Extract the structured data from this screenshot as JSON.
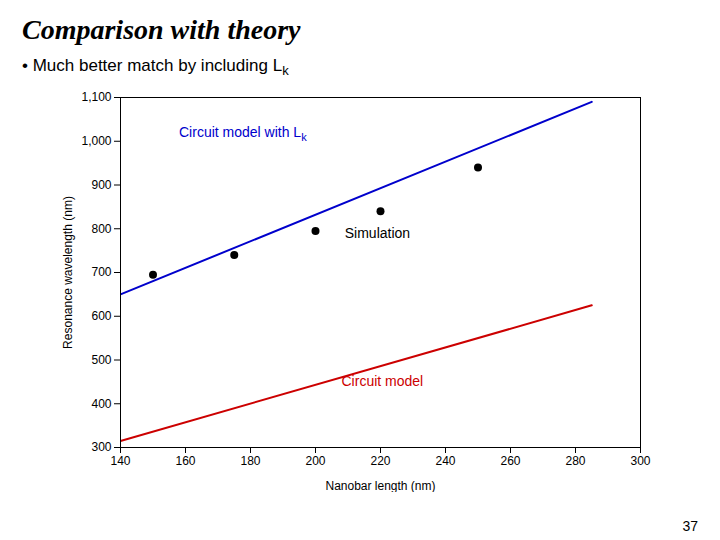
{
  "chart_data": {
    "type": "line",
    "title": "Comparison with theory",
    "subtitle": {
      "text": "•  Much better match by including L",
      "subscript": "k"
    },
    "caption": "37",
    "xlabel": "Nanobar length (nm)",
    "ylabel": "Resonance wavelength (nm)",
    "xlim": [
      140,
      300
    ],
    "ylim": [
      300,
      1100
    ],
    "xticks": [
      140,
      160,
      180,
      200,
      220,
      240,
      260,
      280,
      300
    ],
    "yticks": [
      300,
      400,
      500,
      600,
      700,
      800,
      900,
      1000,
      1100
    ],
    "grid": false,
    "series": [
      {
        "type": "line",
        "color": "#0000CC",
        "x": [
          140,
          285
        ],
        "values": [
          650,
          1090
        ]
      },
      {
        "type": "line",
        "color": "#CC0000",
        "x": [
          140,
          285
        ],
        "values": [
          315,
          625
        ]
      },
      {
        "type": "scatter",
        "color": "black",
        "marker": "circle",
        "x": [
          150,
          175,
          200,
          220,
          250
        ],
        "values": [
          695,
          740,
          795,
          840,
          940
        ]
      }
    ],
    "annotations": [
      {
        "text": "Circuit model with L",
        "subscript": "k",
        "x": 158,
        "y": 1010,
        "color": "#0000CC"
      },
      {
        "text": "Circuit model",
        "x": 208,
        "y": 440,
        "color": "#CC0000"
      },
      {
        "text": "Simulation",
        "x": 209,
        "y": 778,
        "color": "black"
      }
    ]
  }
}
